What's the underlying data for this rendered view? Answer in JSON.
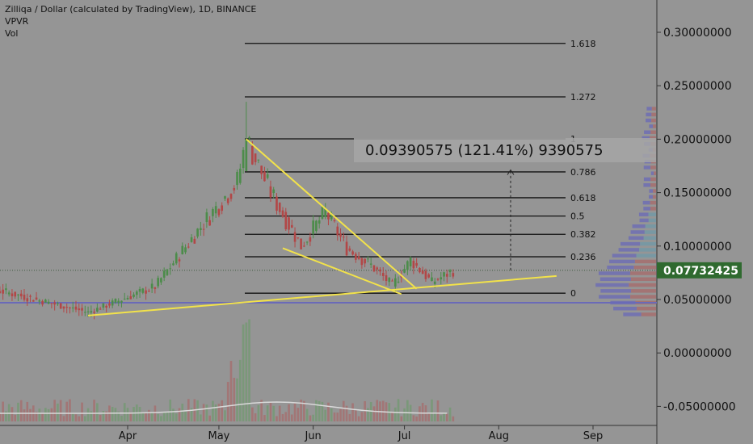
{
  "header": {
    "title": "Zilliqa / Dollar (calculated by TradingView), 1D, BINANCE",
    "indicator1": "VPVR",
    "indicator2": "Vol"
  },
  "colors": {
    "background": "#959595",
    "up": "#4c8c4a",
    "down": "#b24747",
    "trend": "#f2e24a",
    "support": "#6a6ab8",
    "fib": "#111111",
    "price_tag": "#2f6a2f"
  },
  "chart_data": {
    "type": "candlestick",
    "symbol": "ZILUSD",
    "exchange": "BINANCE",
    "interval": "1D",
    "y_ticks": [
      "0.30000000",
      "0.25000000",
      "0.20000000",
      "0.15000000",
      "0.10000000",
      "0.05000000",
      "0.00000000",
      "-0.05000000"
    ],
    "y_tick_values": [
      0.3,
      0.25,
      0.2,
      0.15,
      0.1,
      0.05,
      0.0,
      -0.05
    ],
    "x_ticks": [
      "Apr",
      "May",
      "Jun",
      "Jul",
      "Aug",
      "Sep"
    ],
    "ylim": [
      -0.065,
      0.325
    ],
    "last_price": "0.07732425",
    "last_price_value": 0.0773,
    "support_price": 0.047,
    "fib_levels": [
      {
        "label": "1.618",
        "price": 0.2896
      },
      {
        "label": "1.272",
        "price": 0.2396
      },
      {
        "label": "1",
        "price": 0.2003
      },
      {
        "label": "0.786",
        "price": 0.1694
      },
      {
        "label": "0.618",
        "price": 0.1452
      },
      {
        "label": "0.5",
        "price": 0.1281
      },
      {
        "label": "0.382",
        "price": 0.111
      },
      {
        "label": "0.236",
        "price": 0.09
      },
      {
        "label": "0",
        "price": 0.0559
      }
    ],
    "measure_label": "0.09390575 (121.41%) 9390575",
    "measure_from": 0.0773,
    "measure_to": 0.1712,
    "trend_lines": [
      {
        "from": [
          "2018-05-10",
          0.2
        ],
        "to": [
          "2018-07-05",
          0.06
        ]
      },
      {
        "from": [
          "2018-05-22",
          0.098
        ],
        "to": [
          "2018-06-30",
          0.055
        ]
      },
      {
        "from": [
          "2018-03-19",
          0.035
        ],
        "to": [
          "2018-08-20",
          0.072
        ]
      }
    ],
    "key_points": [
      {
        "date": "2018-02-01",
        "close": 0.07
      },
      {
        "date": "2018-03-19",
        "close": 0.038
      },
      {
        "date": "2018-04-10",
        "close": 0.062
      },
      {
        "date": "2018-04-25",
        "close": 0.118
      },
      {
        "date": "2018-05-07",
        "close": 0.16
      },
      {
        "date": "2018-05-10",
        "close": 0.2,
        "high": 0.235
      },
      {
        "date": "2018-05-18",
        "close": 0.15
      },
      {
        "date": "2018-05-28",
        "close": 0.1
      },
      {
        "date": "2018-06-05",
        "close": 0.132
      },
      {
        "date": "2018-06-12",
        "close": 0.098
      },
      {
        "date": "2018-06-20",
        "close": 0.082
      },
      {
        "date": "2018-06-27",
        "close": 0.063
      },
      {
        "date": "2018-07-03",
        "close": 0.087
      },
      {
        "date": "2018-07-10",
        "close": 0.066
      },
      {
        "date": "2018-07-17",
        "close": 0.077
      }
    ]
  }
}
